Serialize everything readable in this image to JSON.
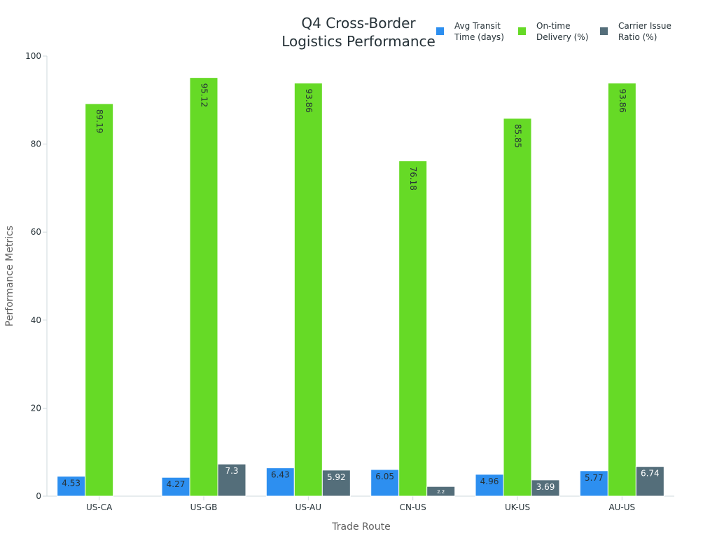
{
  "chart_data": {
    "type": "bar",
    "title_lines": [
      "Q4 Cross-Border",
      "Logistics Performance"
    ],
    "xlabel": "Trade Route",
    "ylabel": "Performance Metrics",
    "ylim": [
      0,
      100
    ],
    "yticks": [
      0,
      20,
      40,
      60,
      80,
      100
    ],
    "grid": false,
    "legend_position": "top-right",
    "categories": [
      "US-CA",
      "US-GB",
      "US-AU",
      "CN-US",
      "UK-US",
      "AU-US"
    ],
    "series": [
      {
        "name_lines": [
          "Avg Transit",
          "Time (days)"
        ],
        "color": "#2d8ff0",
        "values": [
          4.53,
          4.27,
          6.43,
          6.05,
          4.96,
          5.77
        ],
        "labels": [
          "4.53",
          "4.27",
          "6.43",
          "6.05",
          "4.96",
          "5.77"
        ]
      },
      {
        "name_lines": [
          "On-time",
          "Delivery (%)"
        ],
        "color": "#66da26",
        "values": [
          89.19,
          95.12,
          93.86,
          76.18,
          85.85,
          93.86
        ],
        "labels": [
          "89.19",
          "95.12",
          "93.86",
          "76.18",
          "85.85",
          "93.86"
        ]
      },
      {
        "name_lines": [
          "Carrier Issue",
          "Ratio (%)"
        ],
        "color": "#546e7a",
        "values": [
          null,
          7.3,
          5.92,
          2.2,
          3.69,
          6.74
        ],
        "labels": [
          null,
          "7.3",
          "5.92",
          "2.2",
          "3.69",
          "6.74"
        ]
      }
    ]
  }
}
